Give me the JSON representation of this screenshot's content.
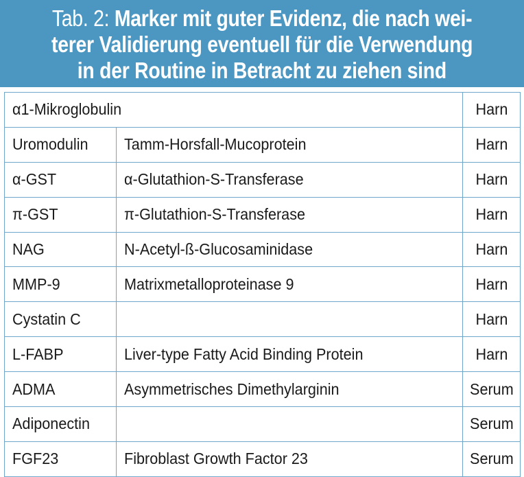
{
  "header": {
    "prefix": "Tab. 2:",
    "lines": [
      "Marker mit guter Evidenz, die nach wei-",
      "terer Validierung eventuell für die Verwendung",
      "in der Routine in Betracht zu ziehen sind"
    ]
  },
  "table": {
    "rows": [
      {
        "marker": "α1-Mikroglobulin",
        "description": "",
        "specimen": "Harn",
        "merged": true
      },
      {
        "marker": "Uromodulin",
        "description": "Tamm-Horsfall-Mucoprotein",
        "specimen": "Harn"
      },
      {
        "marker": "α-GST",
        "description": "α-Glutathion-S-Transferase",
        "specimen": "Harn"
      },
      {
        "marker": "π-GST",
        "description": "π-Glutathion-S-Transferase",
        "specimen": "Harn"
      },
      {
        "marker": "NAG",
        "description": "N-Acetyl-ß-Glucosaminidase",
        "specimen": "Harn"
      },
      {
        "marker": "MMP-9",
        "description": "Matrixmetalloproteinase 9",
        "specimen": "Harn"
      },
      {
        "marker": "Cystatin C",
        "description": "",
        "specimen": "Harn"
      },
      {
        "marker": "L-FABP",
        "description": "Liver-type Fatty Acid Binding Protein",
        "specimen": "Harn"
      },
      {
        "marker": "ADMA",
        "description": "Asymmetrisches Dimethylarginin",
        "specimen": "Serum"
      },
      {
        "marker": "Adiponectin",
        "description": "",
        "specimen": "Serum"
      },
      {
        "marker": "FGF23",
        "description": "Fibroblast Growth Factor 23",
        "specimen": "Serum"
      }
    ]
  },
  "colors": {
    "header_bg": "#4c97c2",
    "border": "#6fa7cc",
    "text": "#1a1a1a"
  }
}
